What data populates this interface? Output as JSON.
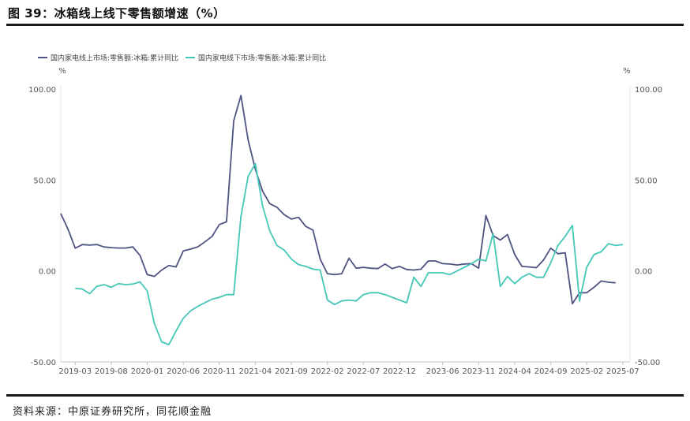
{
  "figure": {
    "title": "图 39：冰箱线上线下零售额增速（%）",
    "source": "资料来源：中原证券研究所，同花顺金融"
  },
  "chart_data": {
    "type": "line",
    "title": "",
    "xlabel": "",
    "ylabel": "%",
    "ylabel_right": "%",
    "ylim": [
      -50,
      100
    ],
    "yticks": [
      "100.00",
      "50.00",
      "0.00",
      "-50.00"
    ],
    "ytick_values": [
      100,
      50,
      0,
      -50
    ],
    "xlim": [
      "2019-01",
      "2025-08"
    ],
    "xticks": [
      "2019-03",
      "2019-08",
      "2020-01",
      "2020-06",
      "2020-11",
      "2021-04",
      "2021-09",
      "2022-02",
      "2022-07",
      "2022-12",
      "2023-06",
      "2023-11",
      "2024-04",
      "2024-09",
      "2025-02",
      "2025-07"
    ],
    "grid": false,
    "legend_position": "top-left",
    "series": [
      {
        "name": "国内家电线上市场:零售额:冰箱:累计同比",
        "color": "#4e5383",
        "points": [
          [
            "2019-01",
            31.5
          ],
          [
            "2019-02",
            23
          ],
          [
            "2019-03",
            12.5
          ],
          [
            "2019-04",
            14.5
          ],
          [
            "2019-05",
            14.2
          ],
          [
            "2019-06",
            14.5
          ],
          [
            "2019-07",
            13.2
          ],
          [
            "2019-08",
            12.8
          ],
          [
            "2019-09",
            12.6
          ],
          [
            "2019-10",
            12.6
          ],
          [
            "2019-11",
            13.2
          ],
          [
            "2019-12",
            8.5
          ],
          [
            "2020-01",
            -2
          ],
          [
            "2020-02",
            -3
          ],
          [
            "2020-03",
            0.5
          ],
          [
            "2020-04",
            3
          ],
          [
            "2020-05",
            2.2
          ],
          [
            "2020-06",
            11
          ],
          [
            "2020-07",
            12
          ],
          [
            "2020-08",
            13.2
          ],
          [
            "2020-09",
            16
          ],
          [
            "2020-10",
            19
          ],
          [
            "2020-11",
            25.5
          ],
          [
            "2020-12",
            27
          ],
          [
            "2021-01",
            82.5
          ],
          [
            "2021-02",
            96.5
          ],
          [
            "2021-03",
            72
          ],
          [
            "2021-04",
            56
          ],
          [
            "2021-05",
            44
          ],
          [
            "2021-06",
            37
          ],
          [
            "2021-07",
            35
          ],
          [
            "2021-08",
            31
          ],
          [
            "2021-09",
            28.5
          ],
          [
            "2021-10",
            29.5
          ],
          [
            "2021-11",
            24.5
          ],
          [
            "2021-12",
            22.5
          ],
          [
            "2022-01",
            6.5
          ],
          [
            "2022-02",
            -1.5
          ],
          [
            "2022-03",
            -2
          ],
          [
            "2022-04",
            -1.5
          ],
          [
            "2022-05",
            7
          ],
          [
            "2022-06",
            1.5
          ],
          [
            "2022-07",
            2
          ],
          [
            "2022-08",
            1.5
          ],
          [
            "2022-09",
            1.3
          ],
          [
            "2022-10",
            3.8
          ],
          [
            "2022-11",
            1.3
          ],
          [
            "2022-12",
            2.5
          ],
          [
            "2023-01",
            0.8
          ],
          [
            "2023-02",
            0.5
          ],
          [
            "2023-03",
            1
          ],
          [
            "2023-04",
            5.5
          ],
          [
            "2023-05",
            5.5
          ],
          [
            "2023-06",
            4
          ],
          [
            "2023-07",
            3.8
          ],
          [
            "2023-08",
            3.3
          ],
          [
            "2023-09",
            3.8
          ],
          [
            "2023-10",
            4
          ],
          [
            "2023-11",
            1.5
          ],
          [
            "2023-12",
            30.5
          ],
          [
            "2024-01",
            19.5
          ],
          [
            "2024-02",
            17
          ],
          [
            "2024-03",
            20
          ],
          [
            "2024-04",
            9
          ],
          [
            "2024-05",
            2.5
          ],
          [
            "2024-06",
            2.2
          ],
          [
            "2024-07",
            1.8
          ],
          [
            "2024-08",
            6
          ],
          [
            "2024-09",
            12.5
          ],
          [
            "2024-10",
            9.5
          ],
          [
            "2024-11",
            10
          ],
          [
            "2024-12",
            -18
          ],
          [
            "2025-01",
            -12
          ],
          [
            "2025-02",
            -12
          ],
          [
            "2025-03",
            -9
          ],
          [
            "2025-04",
            -5.5
          ],
          [
            "2025-05",
            -6.2
          ],
          [
            "2025-06",
            -6.5
          ]
        ]
      },
      {
        "name": "国内家电线下市场:零售额:冰箱:累计同比",
        "color": "#45c7b8",
        "points": [
          [
            "2019-03",
            -9.5
          ],
          [
            "2019-04",
            -10
          ],
          [
            "2019-05",
            -12.5
          ],
          [
            "2019-06",
            -8.5
          ],
          [
            "2019-07",
            -7.5
          ],
          [
            "2019-08",
            -9
          ],
          [
            "2019-09",
            -7
          ],
          [
            "2019-10",
            -7.5
          ],
          [
            "2019-11",
            -7.2
          ],
          [
            "2019-12",
            -6
          ],
          [
            "2020-01",
            -11
          ],
          [
            "2020-02",
            -29
          ],
          [
            "2020-03",
            -39
          ],
          [
            "2020-04",
            -40.5
          ],
          [
            "2020-05",
            -33
          ],
          [
            "2020-06",
            -26
          ],
          [
            "2020-07",
            -22
          ],
          [
            "2020-08",
            -19.5
          ],
          [
            "2020-09",
            -17.5
          ],
          [
            "2020-10",
            -15.5
          ],
          [
            "2020-11",
            -14.5
          ],
          [
            "2020-12",
            -13
          ],
          [
            "2021-01",
            -13
          ],
          [
            "2021-02",
            30
          ],
          [
            "2021-03",
            52
          ],
          [
            "2021-04",
            59
          ],
          [
            "2021-05",
            36
          ],
          [
            "2021-06",
            22
          ],
          [
            "2021-07",
            14
          ],
          [
            "2021-08",
            11.5
          ],
          [
            "2021-09",
            6.5
          ],
          [
            "2021-10",
            3.5
          ],
          [
            "2021-11",
            2.5
          ],
          [
            "2021-12",
            1
          ],
          [
            "2022-01",
            0.5
          ],
          [
            "2022-02",
            -16
          ],
          [
            "2022-03",
            -18.5
          ],
          [
            "2022-04",
            -16.5
          ],
          [
            "2022-05",
            -16
          ],
          [
            "2022-06",
            -16.5
          ],
          [
            "2022-07",
            -13
          ],
          [
            "2022-08",
            -12
          ],
          [
            "2022-09",
            -12
          ],
          [
            "2022-10",
            -13
          ],
          [
            "2022-11",
            -14.5
          ],
          [
            "2022-12",
            -16
          ],
          [
            "2023-01",
            -17.5
          ],
          [
            "2023-02",
            -3.5
          ],
          [
            "2023-03",
            -8.5
          ],
          [
            "2023-04",
            -1
          ],
          [
            "2023-05",
            -1
          ],
          [
            "2023-06",
            -1
          ],
          [
            "2023-07",
            -2
          ],
          [
            "2023-08",
            0
          ],
          [
            "2023-09",
            2
          ],
          [
            "2023-10",
            4
          ],
          [
            "2023-11",
            6.5
          ],
          [
            "2023-12",
            5.5
          ],
          [
            "2024-01",
            20.5
          ],
          [
            "2024-02",
            -8.5
          ],
          [
            "2024-03",
            -3
          ],
          [
            "2024-04",
            -7
          ],
          [
            "2024-05",
            -3.5
          ],
          [
            "2024-06",
            -1.5
          ],
          [
            "2024-07",
            -3.5
          ],
          [
            "2024-08",
            -3.5
          ],
          [
            "2024-09",
            4.5
          ],
          [
            "2024-10",
            14
          ],
          [
            "2024-11",
            19
          ],
          [
            "2024-12",
            25
          ],
          [
            "2025-01",
            -16.5
          ],
          [
            "2025-02",
            2
          ],
          [
            "2025-03",
            9
          ],
          [
            "2025-04",
            10.5
          ],
          [
            "2025-05",
            15
          ],
          [
            "2025-06",
            14
          ],
          [
            "2025-07",
            14.5
          ]
        ]
      }
    ]
  }
}
